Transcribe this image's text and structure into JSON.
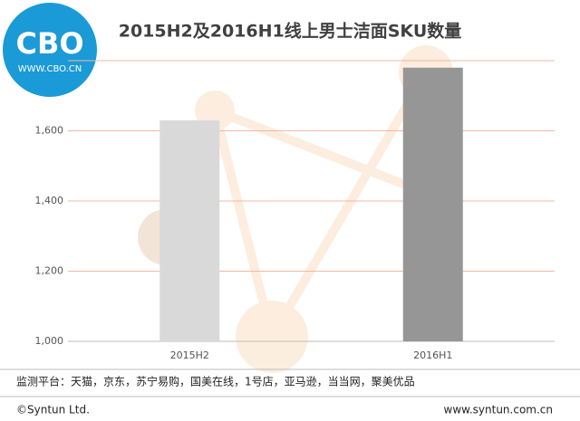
{
  "logo": {
    "mark": "CBO",
    "url": "WWW.CBO.CN"
  },
  "chart_data": {
    "type": "bar",
    "title": "2015H2及2016H1线上男士洁面SKU数量",
    "categories": [
      "2015H2",
      "2016H1"
    ],
    "values": [
      1630,
      1780
    ],
    "colors": [
      "#d9d9d9",
      "#969696"
    ],
    "ylim": [
      1000,
      1800
    ],
    "yticks": [
      {
        "value": 1000,
        "label": "1,000"
      },
      {
        "value": 1200,
        "label": "1,200"
      },
      {
        "value": 1400,
        "label": "1,400"
      },
      {
        "value": 1600,
        "label": "1,600"
      }
    ],
    "grid": true
  },
  "footer": {
    "source": "监测平台：天猫，京东，苏宁易购，国美在线，1号店，亚马逊，当当网，聚美优品",
    "copyright": "©Syntun Ltd.",
    "website": "www.syntun.com.cn"
  }
}
